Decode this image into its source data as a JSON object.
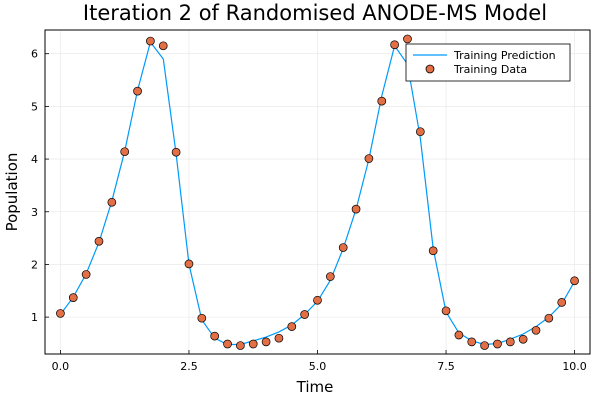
{
  "chart_data": {
    "type": "scatter",
    "title": "Iteration 2 of Randomised ANODE-MS Model",
    "xlabel": "Time",
    "ylabel": "Population",
    "xlim": [
      -0.3,
      10.3
    ],
    "ylim": [
      0.3,
      6.45
    ],
    "grid": true,
    "legend_position": "top-right",
    "x_ticks": [
      0.0,
      2.5,
      5.0,
      7.5,
      10.0
    ],
    "x_tick_labels": [
      "0.0",
      "2.5",
      "5.0",
      "7.5",
      "10.0"
    ],
    "y_ticks": [
      1,
      2,
      3,
      4,
      5,
      6
    ],
    "y_tick_labels": [
      "1",
      "2",
      "3",
      "4",
      "5",
      "6"
    ],
    "series": [
      {
        "name": "Training Prediction",
        "kind": "line",
        "color": "#009af9",
        "x": [
          0.0,
          0.25,
          0.5,
          0.75,
          1.0,
          1.25,
          1.5,
          1.75,
          2.0,
          2.25,
          2.5,
          2.75,
          3.0,
          3.25,
          3.5,
          3.75,
          4.0,
          4.25,
          4.5,
          4.75,
          5.0,
          5.25,
          5.5,
          5.75,
          6.0,
          6.25,
          6.5,
          6.75,
          7.0,
          7.25,
          7.5,
          7.75,
          8.0,
          8.25,
          8.5,
          8.75,
          9.0,
          9.25,
          9.5,
          9.75,
          10.0
        ],
        "y": [
          1.05,
          1.38,
          1.82,
          2.42,
          3.2,
          4.15,
          5.3,
          6.22,
          5.9,
          4.1,
          2.0,
          0.95,
          0.6,
          0.48,
          0.48,
          0.55,
          0.62,
          0.72,
          0.85,
          1.05,
          1.3,
          1.7,
          2.3,
          3.05,
          4.0,
          5.2,
          6.15,
          5.8,
          4.4,
          2.3,
          1.1,
          0.7,
          0.55,
          0.48,
          0.5,
          0.58,
          0.68,
          0.82,
          1.0,
          1.25,
          1.68
        ]
      },
      {
        "name": "Training Data",
        "kind": "scatter",
        "color": "#e26f46",
        "x": [
          0.0,
          0.25,
          0.5,
          0.75,
          1.0,
          1.25,
          1.5,
          1.75,
          2.0,
          2.25,
          2.5,
          2.75,
          3.0,
          3.25,
          3.5,
          3.75,
          4.0,
          4.25,
          4.5,
          4.75,
          5.0,
          5.25,
          5.5,
          5.75,
          6.0,
          6.25,
          6.5,
          6.75,
          7.0,
          7.25,
          7.5,
          7.75,
          8.0,
          8.25,
          8.5,
          8.75,
          9.0,
          9.25,
          9.5,
          9.75,
          10.0
        ],
        "y": [
          1.07,
          1.37,
          1.81,
          2.44,
          3.18,
          4.14,
          5.29,
          6.24,
          6.15,
          4.13,
          2.01,
          0.98,
          0.64,
          0.49,
          0.46,
          0.49,
          0.53,
          0.6,
          0.82,
          1.05,
          1.32,
          1.77,
          2.32,
          3.05,
          4.01,
          5.1,
          6.17,
          6.28,
          4.52,
          2.26,
          1.12,
          0.66,
          0.53,
          0.46,
          0.49,
          0.53,
          0.58,
          0.75,
          0.98,
          1.28,
          1.69
        ]
      }
    ]
  }
}
